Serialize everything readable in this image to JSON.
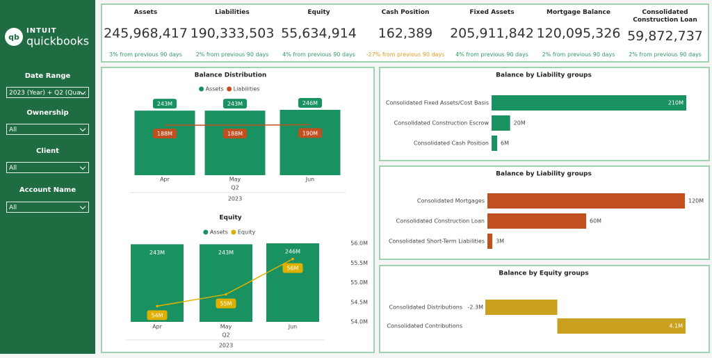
{
  "sidebar": {
    "logo_brand": "INTUIT",
    "logo_product": "quickbooks",
    "filters": [
      {
        "label": "Date Range",
        "value": "2023 (Year) + Q2 (Qua..."
      },
      {
        "label": "Ownership",
        "value": "All"
      },
      {
        "label": "Client",
        "value": "All"
      },
      {
        "label": "Account Name",
        "value": "All"
      }
    ]
  },
  "kpis": [
    {
      "title": "Assets",
      "value": "245,968,417",
      "change": "3% from previous 90 days",
      "change_color": "#2e9a63"
    },
    {
      "title": "Liabilities",
      "value": "190,333,503",
      "change": "2% from previous 90 days",
      "change_color": "#2e9a63"
    },
    {
      "title": "Equity",
      "value": "55,634,914",
      "change": "4% from previous 90 days",
      "change_color": "#2e9a63"
    },
    {
      "title": "Cash Position",
      "value": "162,389",
      "change": "-27% from previous 90 days",
      "change_color": "#e29a1e"
    },
    {
      "title": "Fixed Assets",
      "value": "205,911,842",
      "change": "4% from previous 90 days",
      "change_color": "#2e9a63"
    },
    {
      "title": "Mortgage Balance",
      "value": "120,095,326",
      "change": "2% from previous 90 days",
      "change_color": "#2e9a63"
    },
    {
      "title": "Consolidated Construction Loan",
      "value": "59,872,737",
      "change": "2% from previous 90 days",
      "change_color": "#2e9a63"
    }
  ],
  "chart_data": [
    {
      "type": "combo",
      "title": "Balance Distribution",
      "categories": [
        "Apr",
        "May",
        "Jun"
      ],
      "group_label": "Q2",
      "year_label": "2023",
      "series": [
        {
          "name": "Assets",
          "color": "#1a9160",
          "mark": "bar",
          "values": [
            243,
            243,
            246
          ],
          "value_labels": [
            "243M",
            "243M",
            "246M"
          ]
        },
        {
          "name": "Liabilities",
          "color": "#c0501f",
          "mark": "line",
          "values": [
            188,
            188,
            190
          ],
          "value_labels": [
            "188M",
            "188M",
            "190M"
          ]
        }
      ]
    },
    {
      "type": "combo",
      "title": "Equity",
      "categories": [
        "Apr",
        "May",
        "Jun"
      ],
      "group_label": "Q2",
      "year_label": "2023",
      "series": [
        {
          "name": "Assets",
          "color": "#1a9160",
          "mark": "bar",
          "values": [
            243,
            243,
            246
          ],
          "value_labels": [
            "243M",
            "243M",
            "246M"
          ]
        },
        {
          "name": "Equity",
          "color": "#e0b000",
          "mark": "line",
          "axis": "y2",
          "values": [
            54.4,
            54.7,
            55.6
          ],
          "value_labels": [
            "54M",
            "55M",
            "56M"
          ]
        }
      ],
      "y2lim": [
        54,
        56
      ],
      "y2ticks": [
        {
          "value": 54,
          "label": "54.0M"
        },
        {
          "value": 54.5,
          "label": "54.5M"
        },
        {
          "value": 55,
          "label": "55.0M"
        },
        {
          "value": 55.5,
          "label": "55.5M"
        },
        {
          "value": 56,
          "label": "56.0M"
        }
      ]
    },
    {
      "type": "hbar",
      "title": "Balance by Liability groups",
      "color": "#1a9160",
      "categories": [
        "Consolidated Fixed Assets/Cost Basis",
        "Consolidated Construction Escrow",
        "Consolidated Cash Position"
      ],
      "values": [
        210,
        20,
        6
      ],
      "value_labels": [
        "210M",
        "20M",
        "6M"
      ]
    },
    {
      "type": "hbar",
      "title": "Balance by Liability groups",
      "color": "#c0501f",
      "categories": [
        "Consolidated Mortgages",
        "Consolidated Construction Loan",
        "Consolidated Short-Term Liabilities"
      ],
      "values": [
        120,
        60,
        3
      ],
      "value_labels": [
        "120M",
        "60M",
        "3M"
      ]
    },
    {
      "type": "hbar",
      "title": "Balance by Equity groups",
      "color": "#c9a020",
      "categories": [
        "Consolidated Distributions",
        "Consolidated Contributions"
      ],
      "values": [
        -2.3,
        4.1
      ],
      "value_labels": [
        "-2.3M",
        "4.1M"
      ]
    }
  ]
}
